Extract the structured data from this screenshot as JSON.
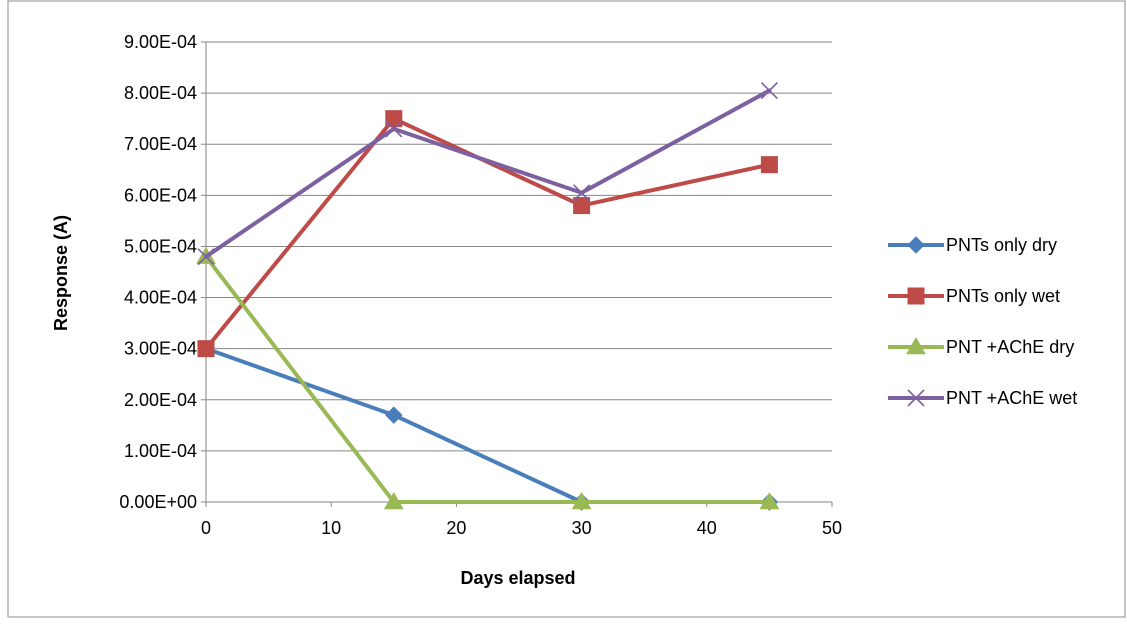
{
  "chart_data": {
    "type": "line",
    "title": "",
    "xlabel": "Days elapsed",
    "ylabel": "Response (A)",
    "xlim": [
      0,
      50
    ],
    "ylim": [
      0,
      0.0009
    ],
    "x_ticks": [
      0,
      10,
      20,
      30,
      40,
      50
    ],
    "x_tick_labels": [
      "0",
      "10",
      "20",
      "30",
      "40",
      "50"
    ],
    "y_ticks": [
      0,
      0.0001,
      0.0002,
      0.0003,
      0.0004,
      0.0005,
      0.0006,
      0.0007,
      0.0008,
      0.0009
    ],
    "y_tick_labels": [
      "0.00E+00",
      "1.00E-04",
      "2.00E-04",
      "3.00E-04",
      "4.00E-04",
      "5.00E-04",
      "6.00E-04",
      "7.00E-04",
      "8.00E-04",
      "9.00E-04"
    ],
    "grid": "horizontal",
    "legend_position": "right",
    "x": [
      0,
      15,
      30,
      45
    ],
    "series": [
      {
        "name": "PNTs only dry",
        "color": "#4a7ebb",
        "marker": "diamond",
        "values": [
          0.0003,
          0.00017,
          0.0,
          0.0
        ]
      },
      {
        "name": "PNTs only wet",
        "color": "#be4b48",
        "marker": "square",
        "values": [
          0.0003,
          0.00075,
          0.00058,
          0.00066
        ]
      },
      {
        "name": "PNT +AChE dry",
        "color": "#98b954",
        "marker": "triangle",
        "values": [
          0.00048,
          0.0,
          0.0,
          0.0
        ]
      },
      {
        "name": "PNT +AChE wet",
        "color": "#7d60a0",
        "marker": "x",
        "values": [
          0.00048,
          0.00073,
          0.000605,
          0.000805
        ]
      }
    ]
  }
}
